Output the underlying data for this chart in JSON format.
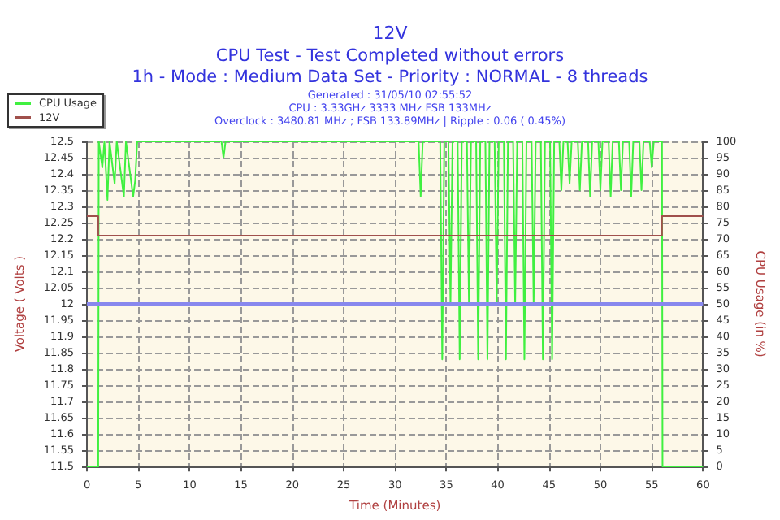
{
  "chart_data": {
    "type": "line",
    "title": "12V",
    "subtitle": "CPU Test - Test Completed without errors\n1h - Mode : Medium Data Set - Priority : NORMAL - 8 threads",
    "annotations": [
      "Generated : 31/05/10 02:55:52",
      "CPU : 3.33GHz 3333 MHz FSB 133MHz",
      "Overclock : 3480.81 MHz ; FSB 133.89MHz | Ripple : 0.06 ( 0.45%)"
    ],
    "xlabel": "Time (Minutes)",
    "ylabel": "Voltage ( Volts )",
    "y2label": "CPU Usage (in %)",
    "series": [
      {
        "name": "CPU Usage",
        "color": "#40f040",
        "axis": "y2",
        "type": "line",
        "x": [
          0,
          1.1,
          1.15,
          1.5,
          1.7,
          2,
          2.2,
          2.7,
          2.9,
          3.6,
          3.8,
          4.5,
          4.7,
          4.9,
          5.1,
          13.1,
          13.3,
          13.5,
          32.3,
          32.5,
          32.7,
          34.4,
          34.6,
          34.8,
          35.2,
          35.4,
          35.6,
          36.1,
          36.3,
          36.5,
          37.0,
          37.2,
          37.4,
          37.9,
          38.1,
          38.3,
          38.8,
          39.0,
          39.2,
          39.7,
          39.9,
          40.1,
          40.6,
          40.8,
          41.0,
          41.5,
          41.7,
          41.9,
          42.4,
          42.6,
          42.8,
          43.3,
          43.5,
          43.7,
          44.2,
          44.4,
          44.6,
          45.1,
          45.3,
          45.5,
          46.0,
          46.2,
          46.4,
          46.8,
          47.0,
          47.2,
          47.8,
          48.0,
          48.2,
          48.8,
          49.0,
          49.2,
          49.8,
          50.0,
          50.2,
          50.8,
          51.0,
          51.2,
          51.8,
          52.0,
          52.2,
          52.8,
          53.0,
          53.2,
          53.8,
          54.0,
          54.2,
          54.8,
          55.0,
          55.2,
          56.0,
          56.05,
          60
        ],
        "values": [
          0,
          0,
          100,
          92,
          100,
          82,
          100,
          87,
          100,
          83,
          100,
          83,
          88,
          100,
          100,
          100,
          95,
          100,
          100,
          83,
          100,
          100,
          33,
          100,
          100,
          50,
          100,
          100,
          33,
          100,
          100,
          50,
          100,
          100,
          33,
          100,
          100,
          33,
          100,
          100,
          50,
          100,
          100,
          33,
          100,
          100,
          50,
          100,
          100,
          33,
          100,
          100,
          50,
          100,
          100,
          33,
          100,
          100,
          33,
          100,
          100,
          85,
          100,
          100,
          87,
          100,
          100,
          85,
          100,
          100,
          83,
          100,
          100,
          85,
          100,
          100,
          83,
          100,
          100,
          85,
          100,
          100,
          83,
          100,
          100,
          85,
          100,
          100,
          92,
          100,
          100,
          0,
          0
        ]
      },
      {
        "name": "12V",
        "color": "#a0504c",
        "type": "step",
        "x": [
          0,
          1.1,
          56,
          60
        ],
        "values": [
          12.27,
          12.21,
          12.27,
          12.27
        ]
      }
    ],
    "xlim": [
      0,
      60
    ],
    "xticks": [
      0,
      5,
      10,
      15,
      20,
      25,
      30,
      35,
      40,
      45,
      50,
      55,
      60
    ],
    "ylim": [
      11.5,
      12.5
    ],
    "yticks": [
      11.5,
      11.55,
      11.6,
      11.65,
      11.7,
      11.75,
      11.8,
      11.85,
      11.9,
      11.95,
      12,
      12.05,
      12.1,
      12.15,
      12.2,
      12.25,
      12.3,
      12.35,
      12.4,
      12.45,
      12.5
    ],
    "y2lim": [
      0,
      100
    ],
    "y2ticks": [
      0,
      5,
      10,
      15,
      20,
      25,
      30,
      35,
      40,
      45,
      50,
      55,
      60,
      65,
      70,
      75,
      80,
      85,
      90,
      95,
      100
    ],
    "ref_lines": [
      {
        "axis": "y",
        "value": 12,
        "color": "#8888ee"
      }
    ],
    "grid": true,
    "legend": "top left",
    "marker": "none",
    "line_style": "solid"
  }
}
